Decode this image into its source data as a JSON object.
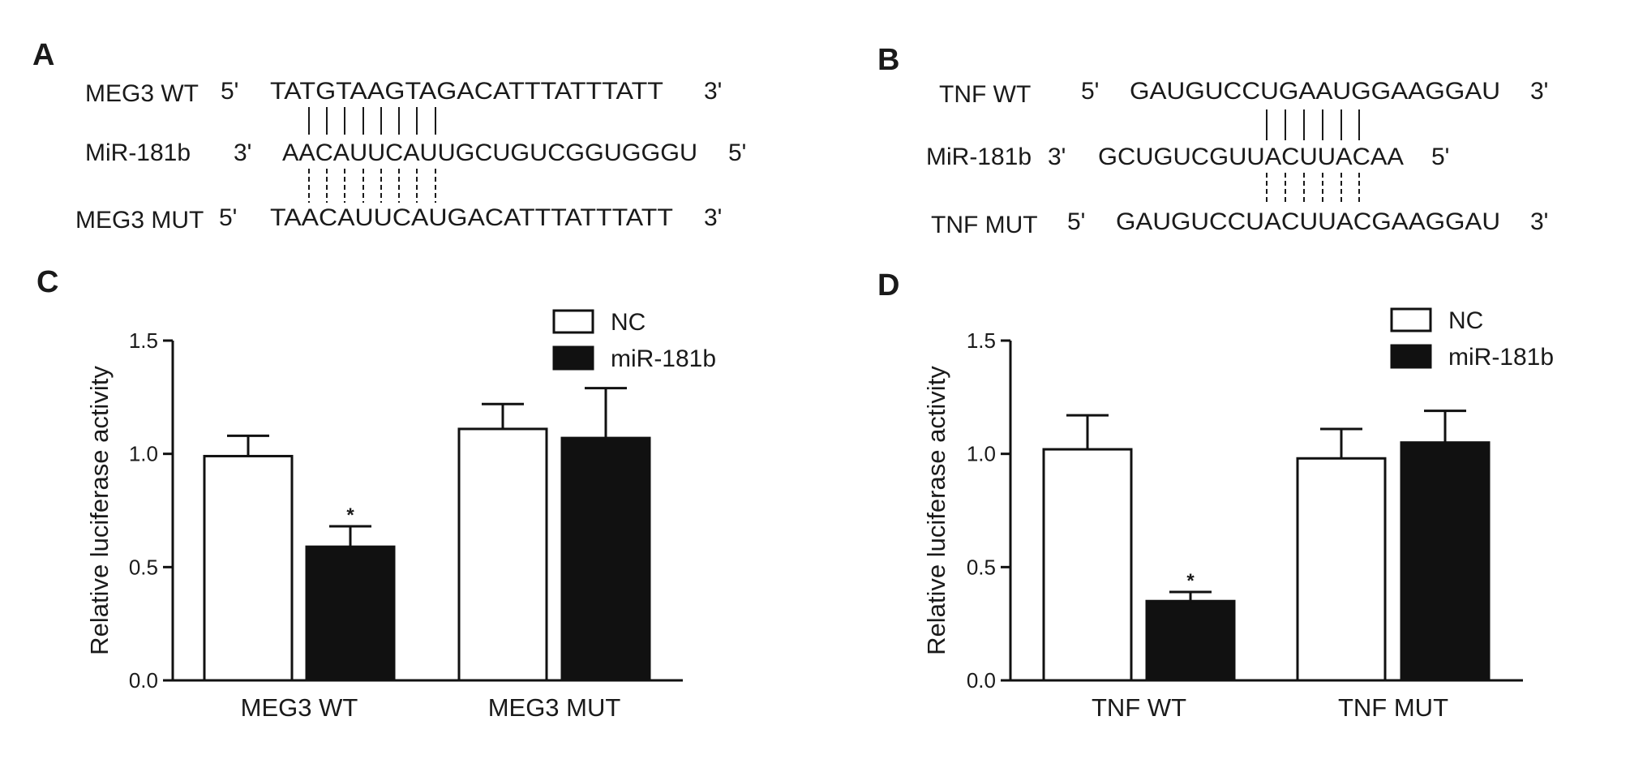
{
  "panels": {
    "A": {
      "label": "A",
      "rows": [
        {
          "name": "MEG3 WT",
          "left": "5'",
          "seq": "TATGTAAGTAGACATTTATTTATT",
          "right": "3'"
        },
        {
          "name": "MiR-181b",
          "left": "3'",
          "seq": "AACAUUCAUUGCUGUCGGUGGGU",
          "right": "5'"
        },
        {
          "name": "MEG3 MUT",
          "left": "5'",
          "seq": "TAACAUUCAUGACATTTATTTATT",
          "right": "3'"
        }
      ]
    },
    "B": {
      "label": "B",
      "rows": [
        {
          "name": "TNF WT",
          "left": "5'",
          "seq": "GAUGUCCUGAAUGGAAGGAU",
          "right": "3'"
        },
        {
          "name": "MiR-181b",
          "left": "3'",
          "seq": "GCUGUCGUUACUUACAA",
          "right": "5'"
        },
        {
          "name": "TNF MUT",
          "left": "5'",
          "seq": "GAUGUCCUACUUACGAAGGAU",
          "right": "3'"
        }
      ]
    },
    "C": {
      "label": "C"
    },
    "D": {
      "label": "D"
    }
  },
  "chart_data": [
    {
      "panel": "C",
      "type": "bar",
      "title": "",
      "xlabel": "",
      "ylabel": "Relative luciferase activity",
      "ylim": [
        0,
        1.5
      ],
      "yticks": [
        "0.0",
        "0.5",
        "1.0",
        "1.5"
      ],
      "categories": [
        "MEG3 WT",
        "MEG3 MUT"
      ],
      "legend_position": "top-right",
      "series": [
        {
          "name": "NC",
          "color": "#ffffff",
          "values": [
            0.99,
            1.11
          ],
          "errors": [
            0.09,
            0.11
          ]
        },
        {
          "name": "miR-181b",
          "color": "#111111",
          "values": [
            0.59,
            1.07
          ],
          "errors": [
            0.09,
            0.22
          ]
        }
      ],
      "annotations": [
        {
          "category": 0,
          "series": 1,
          "text": "*"
        }
      ]
    },
    {
      "panel": "D",
      "type": "bar",
      "title": "",
      "xlabel": "",
      "ylabel": "Relative luciferase activity",
      "ylim": [
        0,
        1.5
      ],
      "yticks": [
        "0.0",
        "0.5",
        "1.0",
        "1.5"
      ],
      "categories": [
        "TNF WT",
        "TNF MUT"
      ],
      "legend_position": "top-right",
      "series": [
        {
          "name": "NC",
          "color": "#ffffff",
          "values": [
            1.02,
            0.98
          ],
          "errors": [
            0.15,
            0.13
          ]
        },
        {
          "name": "miR-181b",
          "color": "#111111",
          "values": [
            0.35,
            1.05
          ],
          "errors": [
            0.04,
            0.14
          ]
        }
      ],
      "annotations": [
        {
          "category": 0,
          "series": 1,
          "text": "*"
        }
      ]
    }
  ]
}
